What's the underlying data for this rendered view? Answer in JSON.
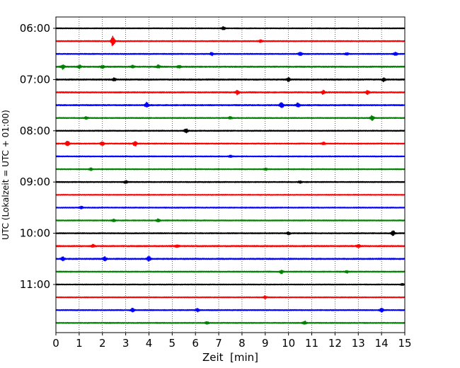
{
  "chart_data": {
    "type": "line",
    "title": "",
    "xlabel": "Zeit  [min]",
    "ylabel": "UTC (Lokalzeit = UTC + 01:00)",
    "xlim": [
      0,
      15
    ],
    "x_ticks": [
      0,
      1,
      2,
      3,
      4,
      5,
      6,
      7,
      8,
      9,
      10,
      11,
      12,
      13,
      14,
      15
    ],
    "x_grid": true,
    "y_tick_labels": [
      {
        "label": "06:00",
        "row": 0
      },
      {
        "label": "07:00",
        "row": 4
      },
      {
        "label": "08:00",
        "row": 8
      },
      {
        "label": "09:00",
        "row": 12
      },
      {
        "label": "10:00",
        "row": 16
      },
      {
        "label": "11:00",
        "row": 20
      }
    ],
    "row_duration_min": 15,
    "row_colors": [
      "#000000",
      "#ff0000",
      "#0000ff",
      "#008000"
    ],
    "traces": [
      {
        "time": "06:00",
        "color": "#000000",
        "amplitude": 0.25,
        "events": [
          {
            "t": 7.2,
            "amp": 0.9
          }
        ]
      },
      {
        "time": "06:15",
        "color": "#ff0000",
        "amplitude": 0.3,
        "events": [
          {
            "t": 2.45,
            "amp": 3.6
          },
          {
            "t": 8.8,
            "amp": 0.7
          }
        ]
      },
      {
        "time": "06:30",
        "color": "#0000ff",
        "amplitude": 0.3,
        "events": [
          {
            "t": 6.7,
            "amp": 0.9
          },
          {
            "t": 10.5,
            "amp": 1.2
          },
          {
            "t": 12.5,
            "amp": 0.8
          },
          {
            "t": 14.6,
            "amp": 1.0
          }
        ]
      },
      {
        "time": "06:45",
        "color": "#008000",
        "amplitude": 0.35,
        "events": [
          {
            "t": 0.3,
            "amp": 1.4
          },
          {
            "t": 1.0,
            "amp": 1.0
          },
          {
            "t": 2.0,
            "amp": 1.0
          },
          {
            "t": 3.3,
            "amp": 0.9
          },
          {
            "t": 4.4,
            "amp": 0.9
          },
          {
            "t": 5.3,
            "amp": 0.9
          }
        ]
      },
      {
        "time": "07:00",
        "color": "#000000",
        "amplitude": 0.35,
        "events": [
          {
            "t": 2.5,
            "amp": 0.8
          },
          {
            "t": 10.0,
            "amp": 1.0
          },
          {
            "t": 14.1,
            "amp": 1.2
          }
        ]
      },
      {
        "time": "07:15",
        "color": "#ff0000",
        "amplitude": 0.35,
        "events": [
          {
            "t": 7.8,
            "amp": 1.2
          },
          {
            "t": 11.5,
            "amp": 1.1
          },
          {
            "t": 13.4,
            "amp": 1.0
          }
        ]
      },
      {
        "time": "07:30",
        "color": "#0000ff",
        "amplitude": 0.35,
        "events": [
          {
            "t": 3.9,
            "amp": 1.6
          },
          {
            "t": 9.7,
            "amp": 2.2
          },
          {
            "t": 10.4,
            "amp": 1.4
          }
        ]
      },
      {
        "time": "07:45",
        "color": "#008000",
        "amplitude": 0.3,
        "events": [
          {
            "t": 1.3,
            "amp": 0.8
          },
          {
            "t": 7.5,
            "amp": 0.7
          },
          {
            "t": 13.6,
            "amp": 1.5
          }
        ]
      },
      {
        "time": "08:00",
        "color": "#000000",
        "amplitude": 0.3,
        "events": [
          {
            "t": 5.6,
            "amp": 1.3
          }
        ]
      },
      {
        "time": "08:15",
        "color": "#ff0000",
        "amplitude": 0.3,
        "events": [
          {
            "t": 0.5,
            "amp": 1.7
          },
          {
            "t": 2.0,
            "amp": 1.5
          },
          {
            "t": 3.4,
            "amp": 1.5
          },
          {
            "t": 11.5,
            "amp": 0.8
          }
        ]
      },
      {
        "time": "08:30",
        "color": "#0000ff",
        "amplitude": 0.28,
        "events": [
          {
            "t": 7.5,
            "amp": 0.6
          }
        ]
      },
      {
        "time": "08:45",
        "color": "#008000",
        "amplitude": 0.28,
        "events": [
          {
            "t": 1.5,
            "amp": 0.7
          },
          {
            "t": 9.0,
            "amp": 0.7
          }
        ]
      },
      {
        "time": "09:00",
        "color": "#000000",
        "amplitude": 0.3,
        "events": [
          {
            "t": 3.0,
            "amp": 0.9
          },
          {
            "t": 10.5,
            "amp": 0.6
          }
        ]
      },
      {
        "time": "09:15",
        "color": "#ff0000",
        "amplitude": 0.25,
        "events": []
      },
      {
        "time": "09:30",
        "color": "#0000ff",
        "amplitude": 0.28,
        "events": [
          {
            "t": 1.1,
            "amp": 0.7
          }
        ]
      },
      {
        "time": "09:45",
        "color": "#008000",
        "amplitude": 0.28,
        "events": [
          {
            "t": 2.5,
            "amp": 0.8
          },
          {
            "t": 4.4,
            "amp": 0.8
          }
        ]
      },
      {
        "time": "10:00",
        "color": "#000000",
        "amplitude": 0.3,
        "events": [
          {
            "t": 10.0,
            "amp": 0.8
          },
          {
            "t": 14.5,
            "amp": 1.5
          }
        ]
      },
      {
        "time": "10:15",
        "color": "#ff0000",
        "amplitude": 0.35,
        "events": [
          {
            "t": 1.6,
            "amp": 0.9
          },
          {
            "t": 5.2,
            "amp": 0.8
          },
          {
            "t": 13.0,
            "amp": 0.9
          }
        ]
      },
      {
        "time": "10:30",
        "color": "#0000ff",
        "amplitude": 0.35,
        "events": [
          {
            "t": 0.3,
            "amp": 1.3
          },
          {
            "t": 2.1,
            "amp": 1.2
          },
          {
            "t": 4.0,
            "amp": 1.6
          }
        ]
      },
      {
        "time": "10:45",
        "color": "#008000",
        "amplitude": 0.3,
        "events": [
          {
            "t": 9.7,
            "amp": 1.0
          },
          {
            "t": 12.5,
            "amp": 0.8
          }
        ]
      },
      {
        "time": "11:00",
        "color": "#000000",
        "amplitude": 0.25,
        "events": [
          {
            "t": 14.9,
            "amp": 0.6
          }
        ]
      },
      {
        "time": "11:15",
        "color": "#ff0000",
        "amplitude": 0.25,
        "events": [
          {
            "t": 9.0,
            "amp": 0.7
          }
        ]
      },
      {
        "time": "11:30",
        "color": "#0000ff",
        "amplitude": 0.3,
        "events": [
          {
            "t": 3.3,
            "amp": 1.3
          },
          {
            "t": 6.1,
            "amp": 1.0
          },
          {
            "t": 14.0,
            "amp": 1.2
          }
        ]
      },
      {
        "time": "11:45",
        "color": "#008000",
        "amplitude": 0.3,
        "events": [
          {
            "t": 6.5,
            "amp": 0.7
          },
          {
            "t": 10.7,
            "amp": 1.0
          }
        ]
      }
    ]
  }
}
